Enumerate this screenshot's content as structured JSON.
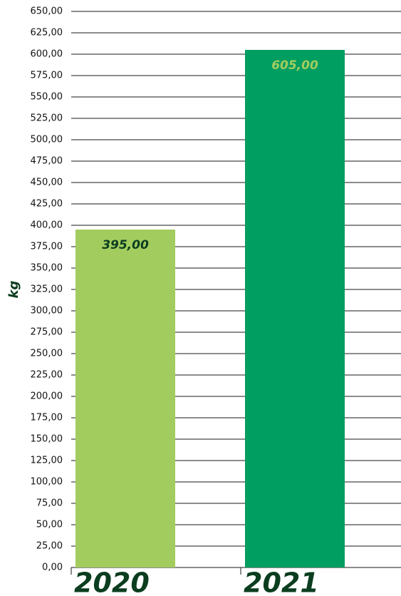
{
  "chart_data": {
    "type": "bar",
    "y_label": "kg",
    "categories": [
      "2020",
      "2021"
    ],
    "values": [
      395,
      605
    ],
    "value_labels": [
      "395,00",
      "605,00"
    ],
    "colors": [
      "#a3cc5f",
      "#009e60"
    ],
    "value_label_colors": [
      "#0b3d1f",
      "#a3cc5f"
    ],
    "ylim": [
      0,
      650
    ],
    "yticks": [
      {
        "value": 0,
        "label": "0,00"
      },
      {
        "value": 25,
        "label": "25,00"
      },
      {
        "value": 50,
        "label": "50,00"
      },
      {
        "value": 75,
        "label": "75,00"
      },
      {
        "value": 100,
        "label": "100,00"
      },
      {
        "value": 125,
        "label": "125,00"
      },
      {
        "value": 150,
        "label": "150,00"
      },
      {
        "value": 175,
        "label": "175,00"
      },
      {
        "value": 200,
        "label": "200,00"
      },
      {
        "value": 225,
        "label": "225,00"
      },
      {
        "value": 250,
        "label": "250,00"
      },
      {
        "value": 275,
        "label": "275,00"
      },
      {
        "value": 300,
        "label": "300,00"
      },
      {
        "value": 325,
        "label": "325,00"
      },
      {
        "value": 350,
        "label": "350,00"
      },
      {
        "value": 375,
        "label": "375,00"
      },
      {
        "value": 400,
        "label": "400,00"
      },
      {
        "value": 425,
        "label": "425,00"
      },
      {
        "value": 450,
        "label": "450,00"
      },
      {
        "value": 475,
        "label": "475,00"
      },
      {
        "value": 500,
        "label": "500,00"
      },
      {
        "value": 525,
        "label": "525,00"
      },
      {
        "value": 550,
        "label": "550,00"
      },
      {
        "value": 575,
        "label": "575,00"
      },
      {
        "value": 600,
        "label": "600,00"
      },
      {
        "value": 625,
        "label": "625,00"
      },
      {
        "value": 650,
        "label": "650,00"
      }
    ],
    "grid": true
  }
}
